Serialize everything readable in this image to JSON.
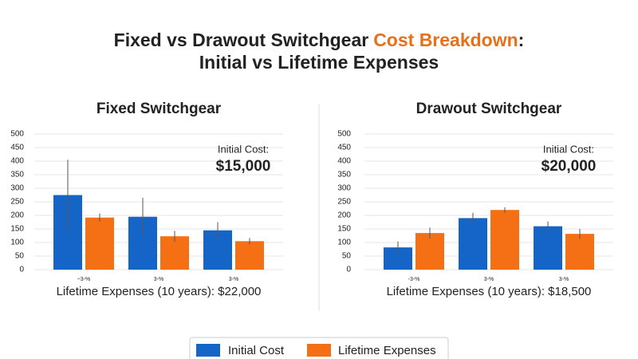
{
  "title": [
    "Fixed vs Drawout Switchgear",
    "Cost Breakdown",
    ":",
    "Initial vs Lifetime Expenses"
  ],
  "chart_data": [
    {
      "type": "bar",
      "title": "Fixed Switchgear",
      "categories": [
        "~3-%",
        "3-%",
        "3-%"
      ],
      "series": [
        {
          "name": "Initial Cost",
          "color": "#1565c8",
          "values": [
            275,
            195,
            145
          ],
          "errors": [
            130,
            70,
            30
          ]
        },
        {
          "name": "Lifetime Expenses",
          "color": "#f57015",
          "values": [
            192,
            123,
            105
          ],
          "errors": [
            15,
            20,
            12
          ]
        }
      ],
      "ylim": [
        0,
        500
      ],
      "yticks": [
        0,
        50,
        100,
        150,
        200,
        250,
        300,
        350,
        400,
        450,
        500
      ],
      "grid": true,
      "annotations": [
        "Initial Cost:",
        "$15,000",
        "Lifetime Expenses (10 years): $22,000"
      ]
    },
    {
      "type": "bar",
      "title": "Drawout Switchgear",
      "categories": [
        "-3-%",
        "3-%",
        "3-%"
      ],
      "series": [
        {
          "name": "Initial Cost",
          "color": "#1565c8",
          "values": [
            82,
            190,
            160
          ],
          "errors": [
            22,
            20,
            18
          ]
        },
        {
          "name": "Lifetime Expenses",
          "color": "#f57015",
          "values": [
            135,
            220,
            132
          ],
          "errors": [
            20,
            10,
            18
          ]
        }
      ],
      "ylim": [
        0,
        500
      ],
      "yticks": [
        0,
        50,
        100,
        150,
        200,
        250,
        300,
        350,
        400,
        450,
        500
      ],
      "grid": true,
      "annotations": [
        "Initial Cost:",
        "$20,000",
        "Lifetime Expenses (10 years): $18,500"
      ]
    }
  ]
}
